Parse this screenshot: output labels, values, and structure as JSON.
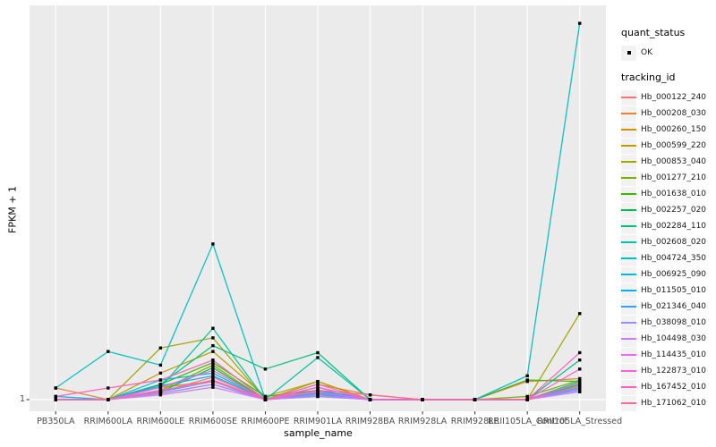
{
  "legend": {
    "quant_status_title": "quant_status",
    "ok_label": "OK",
    "tracking_id_title": "tracking_id"
  },
  "chart_data": {
    "type": "line",
    "title": "",
    "xlabel": "sample_name",
    "ylabel": "FPKM + 1",
    "yscale": "log10",
    "ytick_labels": [
      "1"
    ],
    "ylim_fpkm_plus1": [
      1,
      10.5
    ],
    "grid": "white major gridlines on gray panel",
    "legend_position": "right",
    "panel_background": "#EBEBEB",
    "gridline_color": "#FFFFFF",
    "point_color": "#000000",
    "point_shape": "square",
    "quant_status_of_all_points": "OK",
    "categories": [
      "PB350LA",
      "RRIM600LA",
      "RRIM600LE",
      "RRIM600SE",
      "RRIM600PE",
      "RRIM901LA",
      "RRIM928BA",
      "RRIM928LA",
      "RRIM928LE",
      "RRII105LA_Control",
      "RRII105LA_Stressed"
    ],
    "series": [
      {
        "name": "Hb_000122_240",
        "color": "#F8766D",
        "values": [
          1.0,
          1.0,
          1.05,
          1.13,
          1.0,
          1.06,
          1.0,
          1.0,
          1.0,
          1.0,
          1.1
        ]
      },
      {
        "name": "Hb_000208_030",
        "color": "#EA8331",
        "values": [
          1.075,
          1.0,
          1.04,
          1.1,
          1.0,
          1.1,
          1.03,
          1.0,
          1.0,
          1.12,
          1.14
        ]
      },
      {
        "name": "Hb_000260_150",
        "color": "#D89000",
        "values": [
          1.0,
          1.0,
          1.08,
          1.12,
          1.0,
          1.05,
          1.0,
          1.0,
          1.0,
          1.0,
          1.1
        ]
      },
      {
        "name": "Hb_000599_220",
        "color": "#C09B00",
        "values": [
          1.0,
          1.0,
          1.18,
          1.35,
          1.02,
          1.12,
          1.0,
          1.0,
          1.0,
          1.0,
          1.09
        ]
      },
      {
        "name": "Hb_000853_040",
        "color": "#A3A500",
        "values": [
          1.0,
          1.0,
          1.38,
          1.47,
          1.0,
          1.12,
          1.0,
          1.0,
          1.0,
          1.0,
          1.71
        ]
      },
      {
        "name": "Hb_001277_210",
        "color": "#7CAE00",
        "values": [
          1.0,
          1.0,
          1.06,
          1.24,
          1.0,
          1.04,
          1.0,
          1.0,
          1.0,
          1.02,
          1.13
        ]
      },
      {
        "name": "Hb_001638_010",
        "color": "#39B600",
        "values": [
          1.0,
          1.0,
          1.1,
          1.26,
          1.02,
          1.06,
          1.0,
          1.0,
          1.0,
          1.13,
          1.12
        ]
      },
      {
        "name": "Hb_002257_020",
        "color": "#00BB4E",
        "values": [
          1.0,
          1.0,
          1.05,
          1.22,
          1.0,
          1.03,
          1.0,
          1.0,
          1.0,
          1.0,
          1.08
        ]
      },
      {
        "name": "Hb_002284_110",
        "color": "#00BF7D",
        "values": [
          1.0,
          1.0,
          1.1,
          1.4,
          1.21,
          1.34,
          1.0,
          1.0,
          1.0,
          1.0,
          1.28
        ]
      },
      {
        "name": "Hb_002608_020",
        "color": "#00C1A3",
        "values": [
          1.0,
          1.0,
          1.08,
          1.56,
          1.0,
          1.3,
          1.0,
          1.0,
          1.0,
          1.0,
          1.12
        ]
      },
      {
        "name": "Hb_004724_350",
        "color": "#00BFC4",
        "values": [
          1.075,
          1.35,
          1.24,
          2.64,
          1.0,
          1.02,
          1.0,
          1.0,
          1.0,
          1.16,
          10.45
        ]
      },
      {
        "name": "Hb_006925_090",
        "color": "#00BAE0",
        "values": [
          1.0,
          1.0,
          1.13,
          1.18,
          1.0,
          1.08,
          1.0,
          1.0,
          1.0,
          1.0,
          1.1
        ]
      },
      {
        "name": "Hb_011505_010",
        "color": "#00B0F6",
        "values": [
          1.02,
          1.0,
          1.09,
          1.16,
          1.0,
          1.06,
          1.0,
          1.0,
          1.0,
          1.0,
          1.08
        ]
      },
      {
        "name": "Hb_021346_040",
        "color": "#35A2FF",
        "values": [
          1.0,
          1.0,
          1.05,
          1.12,
          1.0,
          1.04,
          1.0,
          1.0,
          1.0,
          1.0,
          1.07
        ]
      },
      {
        "name": "Hb_038098_010",
        "color": "#9590FF",
        "values": [
          1.0,
          1.0,
          1.04,
          1.1,
          1.0,
          1.03,
          1.0,
          1.0,
          1.0,
          1.0,
          1.06
        ]
      },
      {
        "name": "Hb_104498_030",
        "color": "#C77CFF",
        "values": [
          1.0,
          1.0,
          1.03,
          1.08,
          1.0,
          1.02,
          1.0,
          1.0,
          1.0,
          1.0,
          1.05
        ]
      },
      {
        "name": "Hb_114435_010",
        "color": "#E76BF3",
        "values": [
          1.0,
          1.0,
          1.06,
          1.12,
          1.0,
          1.05,
          1.0,
          1.0,
          1.0,
          1.0,
          1.08
        ]
      },
      {
        "name": "Hb_122873_010",
        "color": "#FA62DB",
        "values": [
          1.0,
          1.0,
          1.08,
          1.2,
          1.0,
          1.08,
          1.0,
          1.0,
          1.0,
          1.0,
          1.21
        ]
      },
      {
        "name": "Hb_167452_010",
        "color": "#FF62BC",
        "values": [
          1.02,
          1.075,
          1.13,
          1.28,
          1.0,
          1.1,
          1.0,
          1.0,
          1.0,
          1.0,
          1.34
        ]
      },
      {
        "name": "Hb_171062_010",
        "color": "#FF6A98",
        "values": [
          1.0,
          1.0,
          1.05,
          1.15,
          1.0,
          1.06,
          1.03,
          1.0,
          1.0,
          1.0,
          1.11
        ]
      }
    ]
  }
}
